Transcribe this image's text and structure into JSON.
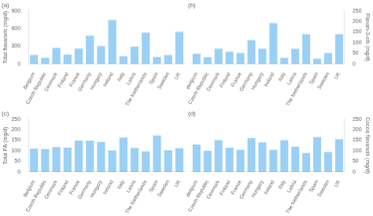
{
  "chart_data": [
    {
      "type": "bar",
      "title": "(a)",
      "ylabel": "Total flavanols (mg/d)",
      "categories": [
        "Belgium",
        "Czech Republic",
        "Denmark",
        "Finland",
        "France",
        "Germany",
        "Hungary",
        "Ireland",
        "Italy",
        "Latvia",
        "The Netherlands",
        "Spain",
        "Sweden",
        "UK"
      ],
      "values": [
        155,
        105,
        275,
        160,
        265,
        480,
        305,
        745,
        135,
        295,
        530,
        120,
        155,
        545
      ],
      "ylim": [
        0,
        900
      ],
      "yticks": [
        0,
        300,
        600,
        900
      ],
      "grid": false
    },
    {
      "type": "bar",
      "title": "(b)",
      "ylabel": "Flavan-3-ols (mg/d)",
      "categories": [
        "Belgium",
        "Czech Republic",
        "Denmark",
        "Finland",
        "France",
        "Germany",
        "Hungary",
        "Ireland",
        "Italy",
        "Latvia",
        "The Netherlands",
        "Spain",
        "Sweden",
        "UK"
      ],
      "values": [
        48,
        32,
        72,
        58,
        52,
        112,
        72,
        192,
        30,
        72,
        140,
        25,
        52,
        140
      ],
      "ylim": [
        0,
        250
      ],
      "yticks": [
        0,
        50,
        100,
        150,
        200,
        250
      ],
      "grid": false
    },
    {
      "type": "bar",
      "title": "(c)",
      "ylabel": "Total PA (mg/d)",
      "categories": [
        "Belgium",
        "Czech Republic",
        "Denmark",
        "Finland",
        "France",
        "Germany",
        "Hungary",
        "Ireland",
        "Italy",
        "Latvia",
        "The Netherlands",
        "Spain",
        "Sweden",
        "UK"
      ],
      "values": [
        110,
        108,
        118,
        115,
        148,
        148,
        142,
        102,
        162,
        113,
        97,
        172,
        103,
        112
      ],
      "ylim": [
        0,
        250
      ],
      "yticks": [
        0,
        50,
        100,
        150,
        200,
        250
      ],
      "grid": false
    },
    {
      "type": "bar",
      "title": "(d)",
      "ylabel": "Cocoa flavanols (mg/d)",
      "categories": [
        "Belgium",
        "Czech Republic",
        "Denmark",
        "Finland",
        "France",
        "Germany",
        "Hungary",
        "Ireland",
        "Italy",
        "Latvia",
        "The Netherlands",
        "Spain",
        "Sweden",
        "UK"
      ],
      "values": [
        130,
        100,
        150,
        115,
        105,
        160,
        140,
        105,
        150,
        120,
        90,
        165,
        95,
        155
      ],
      "ylim": [
        0,
        250
      ],
      "yticks": [
        0,
        50,
        100,
        150,
        200,
        250
      ],
      "grid": false
    }
  ]
}
